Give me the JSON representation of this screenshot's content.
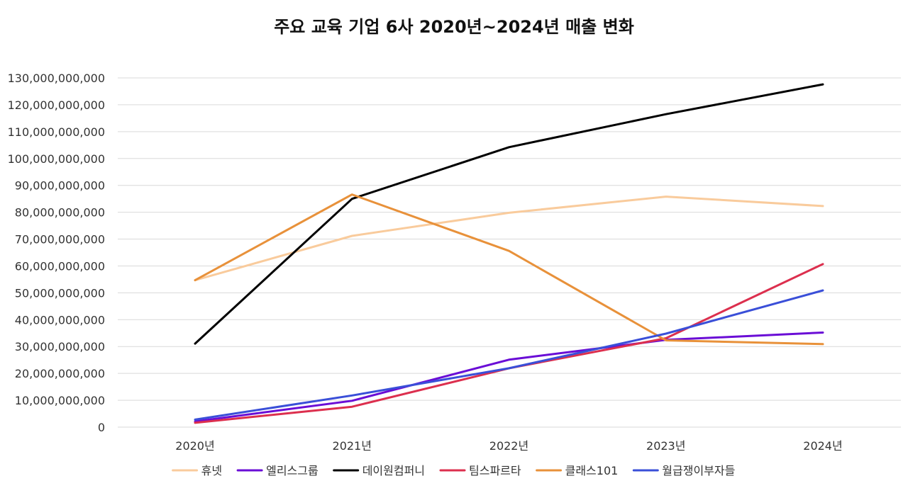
{
  "chart_data": {
    "type": "line",
    "title": "주요 교육 기업 6사 2020년~2024년 매출 변화",
    "xlabel": "",
    "ylabel": "",
    "categories": [
      "2020년",
      "2021년",
      "2022년",
      "2023년",
      "2024년"
    ],
    "ylim": [
      0,
      130000000000
    ],
    "y_ticks": [
      "0",
      "10,000,000,000",
      "20,000,000,000",
      "30,000,000,000",
      "40,000,000,000",
      "50,000,000,000",
      "60,000,000,000",
      "70,000,000,000",
      "80,000,000,000",
      "90,000,000,000",
      "100,000,000,000",
      "110,000,000,000",
      "120,000,000,000",
      "130,000,000,000"
    ],
    "grid": true,
    "legend_position": "bottom",
    "series": [
      {
        "name": "휴넷",
        "color": "#F9CB9C",
        "values": [
          54700000000,
          71200000000,
          79800000000,
          85800000000,
          82300000000
        ]
      },
      {
        "name": "엘리스그룹",
        "color": "#6A0DD6",
        "values": [
          2100000000,
          9800000000,
          25100000000,
          32500000000,
          35200000000
        ]
      },
      {
        "name": "데이원컴퍼니",
        "color": "#000000",
        "values": [
          31100000000,
          85000000000,
          104200000000,
          116500000000,
          127600000000
        ]
      },
      {
        "name": "팀스파르타",
        "color": "#DC2F4E",
        "values": [
          1600000000,
          7600000000,
          21900000000,
          33100000000,
          60700000000
        ]
      },
      {
        "name": "클래스101",
        "color": "#E8913A",
        "values": [
          54700000000,
          86600000000,
          65600000000,
          32300000000,
          30900000000
        ]
      },
      {
        "name": "월급쟁이부자들",
        "color": "#3A4FD8",
        "values": [
          2800000000,
          11800000000,
          21900000000,
          34800000000,
          50900000000
        ]
      }
    ]
  }
}
